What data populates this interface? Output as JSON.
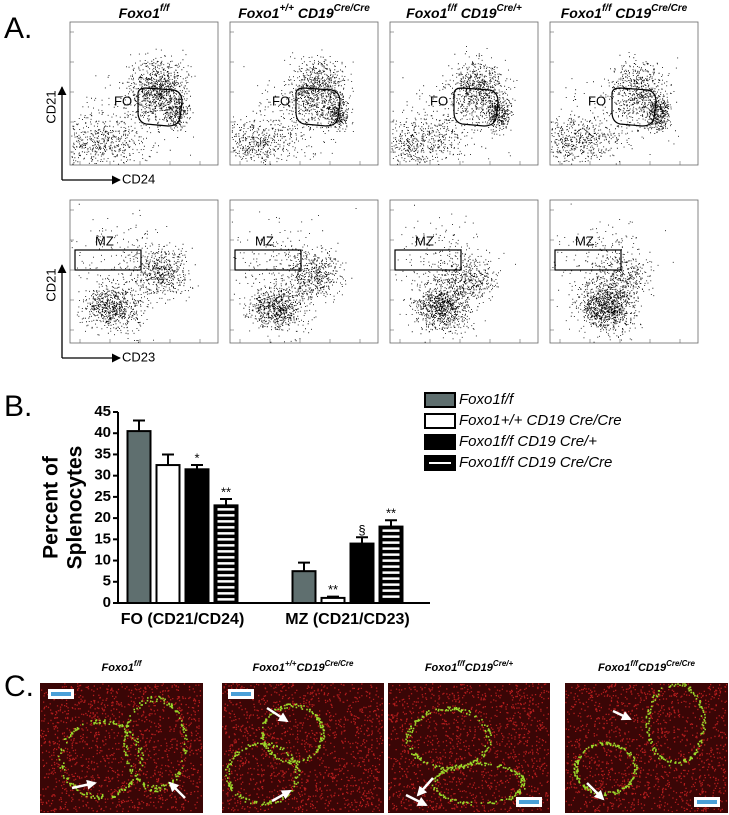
{
  "panel_a": {
    "label": "A.",
    "column_headers": [
      [
        "Foxo1",
        "f/f"
      ],
      [
        "Foxo1",
        "+/+",
        " CD19",
        "Cre/Cre"
      ],
      [
        "Foxo1",
        "f/f",
        " CD19",
        "Cre/+"
      ],
      [
        "Foxo1",
        "f/f",
        " CD19",
        "Cre/Cre"
      ]
    ],
    "top_row": {
      "y_label": "CD21",
      "x_label": "CD24",
      "gate": "FO"
    },
    "bottom_row": {
      "y_label": "CD21",
      "x_label": "CD23",
      "gate": "MZ"
    }
  },
  "panel_b_label": "B.",
  "chart_data": {
    "type": "bar",
    "y_label": [
      "Percent of",
      "Splenocytes"
    ],
    "categories": [
      "FO (CD21/CD24)",
      "MZ (CD21/CD23)"
    ],
    "series": [
      {
        "name": "Foxo1f/f",
        "color": "#5f6f6f",
        "hatch": false,
        "values": [
          40.5,
          7.5
        ],
        "errors": [
          2.5,
          2
        ],
        "significance": [
          null,
          null
        ]
      },
      {
        "name": "Foxo1+/+ CD19 Cre/Cre",
        "color": "#ffffff",
        "hatch": false,
        "values": [
          32.5,
          1.2
        ],
        "errors": [
          2.5,
          0.3
        ],
        "significance": [
          null,
          "**"
        ]
      },
      {
        "name": "Foxo1f/f CD19 Cre/+",
        "color": "#000000",
        "hatch": false,
        "values": [
          31.5,
          14
        ],
        "errors": [
          1,
          1.5
        ],
        "significance": [
          "*",
          "§"
        ]
      },
      {
        "name": "Foxo1f/f CD19 Cre/Cre",
        "color": "#000000",
        "hatch": true,
        "values": [
          23,
          18
        ],
        "errors": [
          1.5,
          1.5
        ],
        "significance": [
          "**",
          "**"
        ]
      }
    ],
    "ylim": [
      0,
      45
    ],
    "yticks": [
      0,
      5,
      10,
      15,
      20,
      25,
      30,
      35,
      40,
      45
    ]
  },
  "panel_c": {
    "label": "C.",
    "titles": [
      [
        "Foxo1",
        "f/f"
      ],
      [
        "Foxo1",
        "+/+",
        "CD19",
        "Cre/Cre"
      ],
      [
        "Foxo1",
        "f/f",
        "CD19",
        "Cre/+"
      ],
      [
        "Foxo1",
        "f/f",
        "CD19",
        "Cre/Cre"
      ]
    ]
  }
}
